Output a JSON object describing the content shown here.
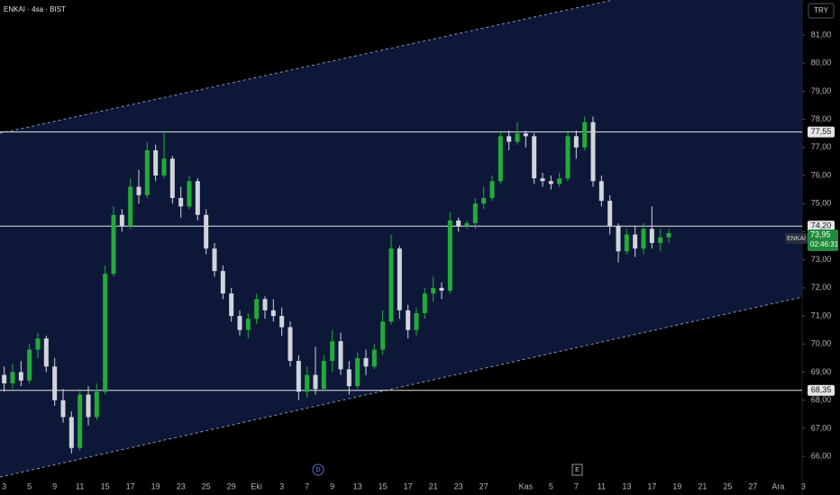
{
  "chart_data": {
    "type": "candlestick",
    "title": "ENKAI · 4sa · BIST",
    "currency": "TRY",
    "symbol": "ENKAI",
    "countdown": "02:46:31",
    "events": [
      "D",
      "E"
    ],
    "up_color": "#22ab3a",
    "down_color": "#d1d4dc",
    "categories": [
      "3",
      null,
      null,
      "5",
      null,
      null,
      "9",
      null,
      null,
      "11",
      null,
      null,
      "15",
      null,
      null,
      "17",
      null,
      null,
      "19",
      null,
      null,
      "23",
      null,
      null,
      "25",
      null,
      null,
      "29",
      null,
      null,
      "Eki",
      null,
      null,
      "3",
      null,
      null,
      "7",
      null,
      null,
      "9",
      null,
      null,
      "13",
      null,
      null,
      "15",
      null,
      null,
      "17",
      null,
      null,
      "21",
      null,
      null,
      "23",
      null,
      null,
      "27",
      null,
      null,
      null,
      null,
      "Kas",
      null,
      null,
      "5",
      null,
      null,
      "7",
      null,
      null,
      "11",
      null,
      null,
      "13",
      null,
      null,
      "17",
      null,
      null,
      "19",
      null,
      null,
      "21",
      null,
      null,
      "25",
      null,
      null,
      "27",
      null,
      null,
      "Ara",
      null,
      null,
      "3"
    ],
    "open": [
      68.9,
      68.6,
      69.0,
      68.7,
      69.8,
      70.2,
      69.2,
      68.0,
      67.4,
      66.3,
      68.2,
      67.4,
      68.3,
      72.5,
      74.6,
      74.2,
      75.6,
      75.3,
      76.9,
      76.0,
      76.6,
      75.2,
      74.9,
      75.8,
      74.6,
      73.4,
      72.6,
      71.8,
      71.0,
      70.5,
      70.9,
      71.6,
      71.2,
      71.0,
      70.6,
      69.4,
      68.3,
      68.9,
      68.4,
      69.4,
      70.1,
      69.1,
      68.5,
      69.5,
      69.2,
      69.8,
      70.8,
      73.4,
      71.2,
      70.5,
      71.1,
      71.8,
      72.0,
      71.9,
      74.4,
      74.2,
      74.3,
      75.0,
      75.2,
      75.8,
      77.4,
      77.2,
      77.5,
      77.4,
      75.9,
      75.8,
      75.7,
      75.9,
      77.4,
      77.0,
      77.9,
      75.8,
      75.1,
      74.2,
      73.3,
      73.9,
      73.4,
      74.1,
      73.6,
      73.8,
      null,
      null,
      null,
      null,
      null,
      null,
      null,
      null,
      null,
      null,
      null,
      null,
      null,
      null,
      null,
      null
    ],
    "high": [
      69.2,
      69.3,
      69.4,
      70.0,
      70.4,
      70.3,
      69.5,
      68.4,
      67.6,
      68.4,
      68.5,
      68.6,
      72.8,
      74.9,
      74.8,
      75.9,
      76.2,
      77.2,
      77.1,
      77.6,
      76.7,
      75.6,
      76.0,
      75.9,
      74.8,
      73.6,
      72.8,
      72.0,
      71.2,
      71.1,
      71.8,
      71.7,
      71.6,
      71.3,
      70.8,
      69.6,
      69.2,
      69.9,
      69.6,
      70.5,
      70.4,
      69.4,
      69.7,
      69.8,
      70.0,
      71.2,
      73.9,
      73.5,
      71.4,
      71.3,
      72.0,
      72.4,
      72.2,
      74.7,
      74.5,
      74.4,
      75.2,
      75.6,
      76.0,
      77.6,
      77.6,
      77.9,
      77.6,
      77.5,
      76.1,
      76.0,
      76.1,
      77.6,
      77.6,
      78.1,
      78.1,
      76.0,
      75.3,
      74.3,
      74.1,
      74.2,
      74.3,
      74.9,
      74.1,
      74.1,
      null,
      null,
      null,
      null,
      null,
      null,
      null,
      null,
      null,
      null,
      null,
      null,
      null,
      null,
      null,
      null
    ],
    "low": [
      68.3,
      68.4,
      68.5,
      68.6,
      69.5,
      69.0,
      67.8,
      67.2,
      66.1,
      66.2,
      67.1,
      67.3,
      68.2,
      72.4,
      74.0,
      74.1,
      75.0,
      75.2,
      75.8,
      75.9,
      75.0,
      74.5,
      74.8,
      74.4,
      73.2,
      72.4,
      71.6,
      70.8,
      70.3,
      70.2,
      70.7,
      70.9,
      70.8,
      70.3,
      69.2,
      68.0,
      68.1,
      68.2,
      68.3,
      69.0,
      68.9,
      68.2,
      68.4,
      68.9,
      69.1,
      69.6,
      70.7,
      70.9,
      70.2,
      70.3,
      70.9,
      71.5,
      71.6,
      71.8,
      74.0,
      74.1,
      74.1,
      74.8,
      75.1,
      75.7,
      76.9,
      77.1,
      77.0,
      75.7,
      75.6,
      75.5,
      75.6,
      75.8,
      76.6,
      76.9,
      75.6,
      74.9,
      73.9,
      72.9,
      73.2,
      73.1,
      73.2,
      73.4,
      73.3,
      73.6,
      null,
      null,
      null,
      null,
      null,
      null,
      null,
      null,
      null,
      null,
      null,
      null,
      null,
      null,
      null,
      null
    ],
    "close": [
      68.6,
      69.0,
      68.7,
      69.8,
      70.2,
      69.2,
      68.0,
      67.4,
      66.3,
      68.2,
      67.4,
      68.3,
      72.5,
      74.6,
      74.2,
      75.6,
      75.3,
      76.9,
      76.0,
      76.6,
      75.2,
      74.9,
      75.8,
      74.6,
      73.4,
      72.6,
      71.8,
      71.0,
      70.5,
      70.9,
      71.6,
      71.2,
      71.0,
      70.6,
      69.4,
      68.3,
      68.9,
      68.4,
      69.4,
      70.1,
      69.1,
      68.5,
      69.5,
      69.2,
      69.8,
      70.8,
      73.4,
      71.2,
      70.5,
      71.1,
      71.8,
      72.0,
      71.9,
      74.4,
      74.2,
      74.3,
      75.0,
      75.2,
      75.8,
      77.4,
      77.2,
      77.5,
      77.4,
      75.9,
      75.8,
      75.7,
      75.9,
      77.4,
      77.0,
      77.9,
      75.8,
      75.1,
      74.2,
      73.3,
      73.9,
      73.4,
      74.1,
      73.6,
      73.8,
      73.95,
      null,
      null,
      null,
      null,
      null,
      null,
      null,
      null,
      null,
      null,
      null,
      null,
      null,
      null,
      null,
      null
    ],
    "ylim": [
      65.33,
      82.25
    ],
    "yticks": [
      {
        "value": 66,
        "label": "66,00"
      },
      {
        "value": 67,
        "label": "67,00"
      },
      {
        "value": 68,
        "label": "68,00"
      },
      {
        "value": 69,
        "label": "69,00"
      },
      {
        "value": 70,
        "label": "70,00"
      },
      {
        "value": 71,
        "label": "71,00"
      },
      {
        "value": 72,
        "label": "72,00"
      },
      {
        "value": 73,
        "label": "73,00"
      },
      {
        "value": 74,
        "label": "74,00"
      },
      {
        "value": 75,
        "label": "75,00"
      },
      {
        "value": 76,
        "label": "76,00"
      },
      {
        "value": 77,
        "label": "77,00"
      },
      {
        "value": 78,
        "label": "78,00"
      },
      {
        "value": 79,
        "label": "79,00"
      },
      {
        "value": 80,
        "label": "80,00"
      },
      {
        "value": 81,
        "label": "81,00"
      }
    ],
    "levels": [
      {
        "value": 77.55,
        "label": "77,55"
      },
      {
        "value": 74.2,
        "label": "74,20"
      },
      {
        "value": 68.35,
        "label": "68,35"
      }
    ],
    "last_price": {
      "value": 73.95,
      "label": "73,95"
    }
  }
}
